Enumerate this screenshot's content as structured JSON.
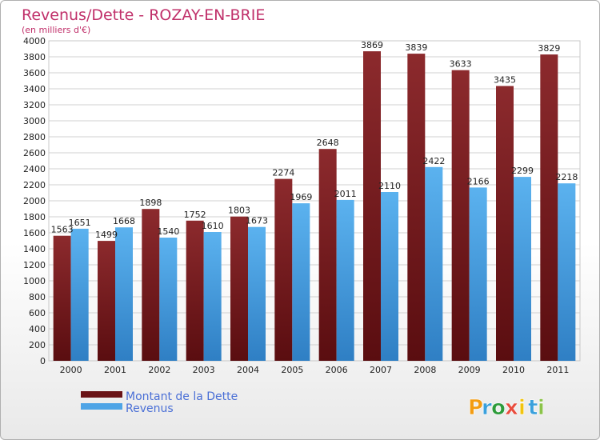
{
  "chart_data": {
    "type": "bar",
    "title": "Revenus/Dette - ROZAY-EN-BRIE",
    "subtitle": "(en milliers d'€)",
    "categories": [
      "2000",
      "2001",
      "2002",
      "2003",
      "2004",
      "2005",
      "2006",
      "2007",
      "2008",
      "2009",
      "2010",
      "2011"
    ],
    "series": [
      {
        "name": "Montant de la Dette",
        "color": "#7a1a1c",
        "values": [
          1563,
          1499,
          1898,
          1752,
          1803,
          2274,
          2648,
          3869,
          3839,
          3633,
          3435,
          3829
        ]
      },
      {
        "name": "Revenus",
        "color": "#4ea4e6",
        "values": [
          1651,
          1668,
          1540,
          1610,
          1673,
          1969,
          2011,
          2110,
          2422,
          2166,
          2299,
          2218
        ]
      }
    ],
    "ylim": [
      0,
      4000
    ],
    "ytick_step": 200,
    "grid": true,
    "legend_position": "bottom-left"
  },
  "brand": {
    "letters": [
      "P",
      "r",
      "o",
      "x",
      "i",
      "t",
      "i"
    ],
    "colors": [
      "#f39c12",
      "#3aa0dc",
      "#2d9b3a",
      "#e84c3d",
      "#f1c40f",
      "#3aa0dc",
      "#8bc34a"
    ]
  }
}
